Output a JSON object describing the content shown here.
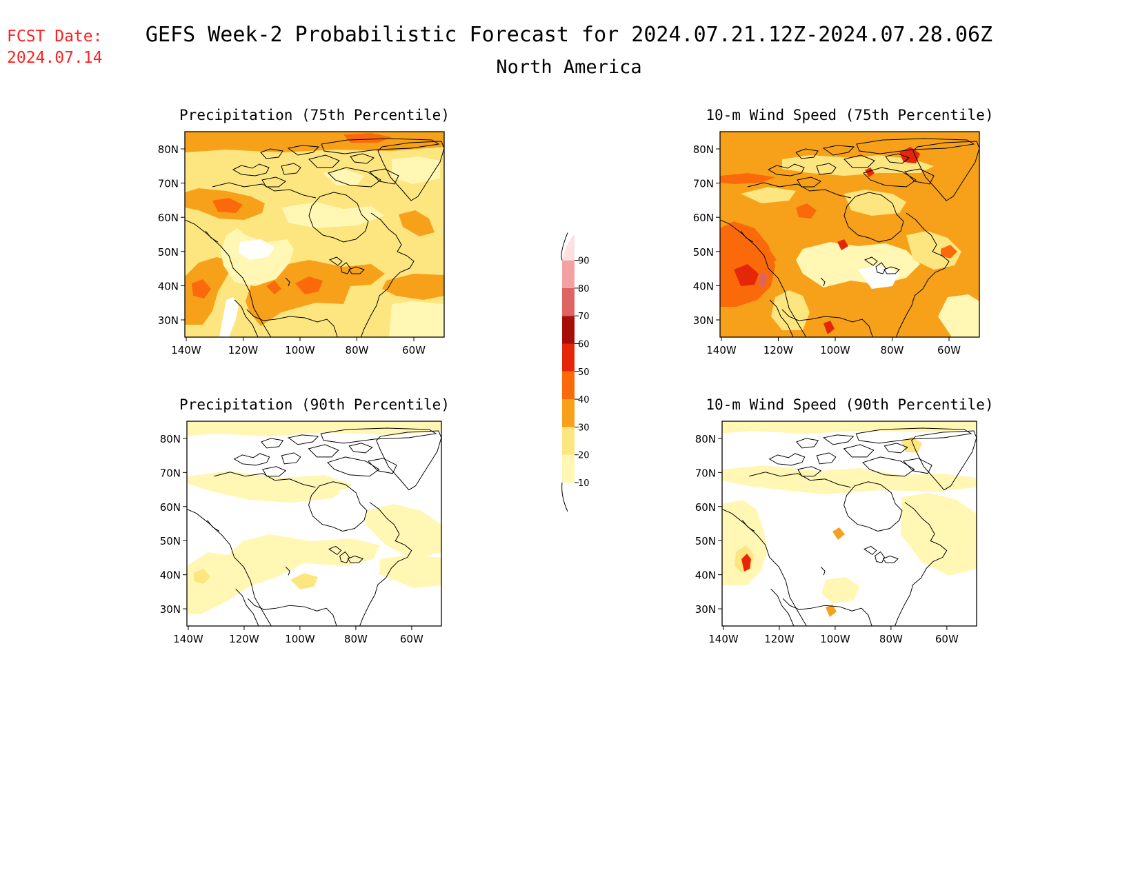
{
  "header": {
    "fcst_label": "FCST Date:",
    "fcst_date": "2024.07.14",
    "title": "GEFS Week-2 Probabilistic Forecast for 2024.07.21.12Z-2024.07.28.06Z",
    "region": "North America"
  },
  "colors": {
    "text": "#000000",
    "fcst": "#ff2020",
    "bins": [
      "#fff7b3",
      "#fde57f",
      "#f7a11a",
      "#fb6a0a",
      "#e52709",
      "#a60f08",
      "#de6463",
      "#f2a2a2",
      "#fde1e1"
    ]
  },
  "legend": {
    "levels": [
      "10",
      "20",
      "30",
      "40",
      "50",
      "60",
      "70",
      "80",
      "90"
    ]
  },
  "axes": {
    "lon_ticks": [
      "140W",
      "120W",
      "100W",
      "80W",
      "60W"
    ],
    "lat_ticks": [
      "80N",
      "70N",
      "60N",
      "50N",
      "40N",
      "30N"
    ]
  },
  "panels": [
    {
      "id": "precip-75",
      "title": "Precipitation (75th Percentile)"
    },
    {
      "id": "wind-75",
      "title": "10-m Wind Speed (75th Percentile)"
    },
    {
      "id": "precip-90",
      "title": "Precipitation (90th Percentile)"
    },
    {
      "id": "wind-90",
      "title": "10-m Wind Speed (90th Percentile)"
    }
  ]
}
